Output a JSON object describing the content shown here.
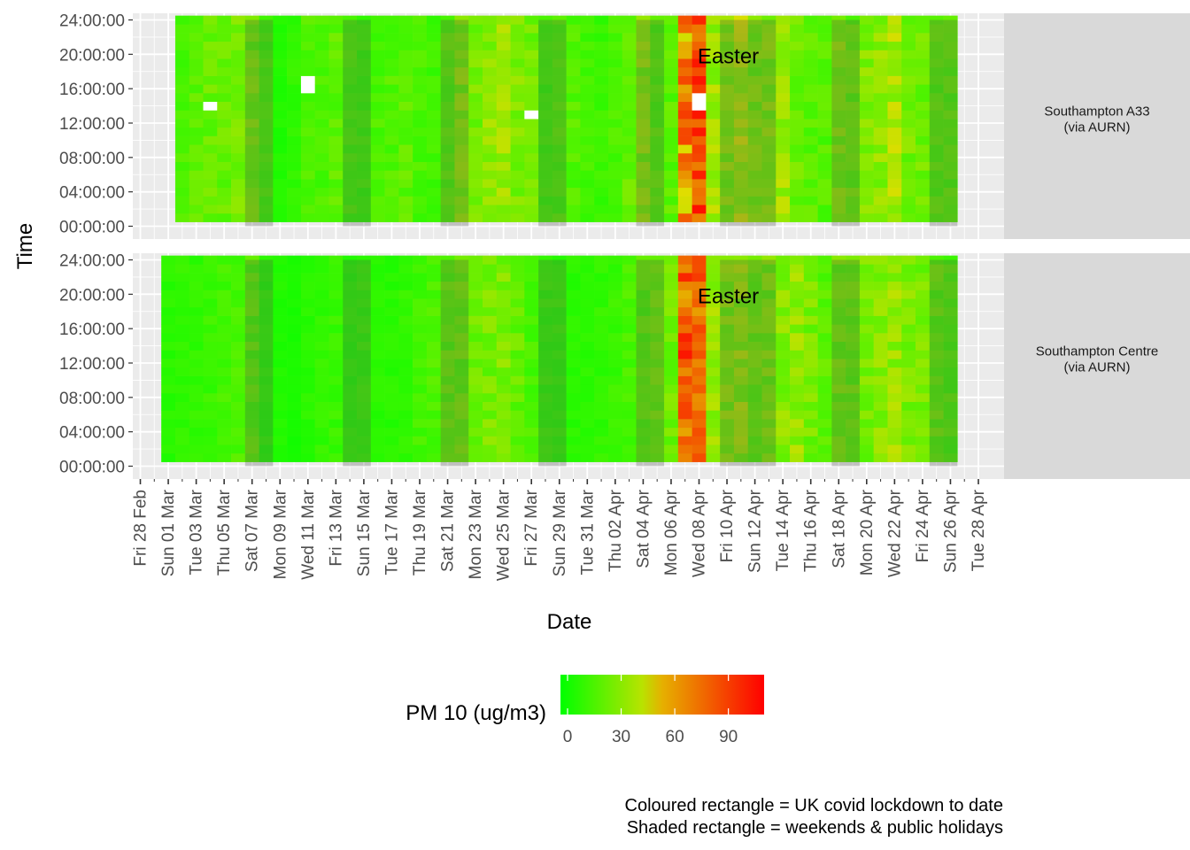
{
  "chart_data": {
    "type": "heatmap",
    "title": "",
    "xlabel": "Date",
    "ylabel": "Time",
    "x_range": [
      "2020-02-28",
      "2020-04-28"
    ],
    "x_ticks": [
      "Fri 28 Feb",
      "Sun 01 Mar",
      "Tue 03 Mar",
      "Thu 05 Mar",
      "Sat 07 Mar",
      "Mon 09 Mar",
      "Wed 11 Mar",
      "Fri 13 Mar",
      "Sun 15 Mar",
      "Tue 17 Mar",
      "Thu 19 Mar",
      "Sat 21 Mar",
      "Mon 23 Mar",
      "Wed 25 Mar",
      "Fri 27 Mar",
      "Sun 29 Mar",
      "Tue 31 Mar",
      "Thu 02 Apr",
      "Sat 04 Apr",
      "Mon 06 Apr",
      "Wed 08 Apr",
      "Fri 10 Apr",
      "Sun 12 Apr",
      "Tue 14 Apr",
      "Thu 16 Apr",
      "Sat 18 Apr",
      "Mon 20 Apr",
      "Wed 22 Apr",
      "Fri 24 Apr",
      "Sun 26 Apr",
      "Tue 28 Apr"
    ],
    "y_ticks": [
      "00:00:00",
      "04:00:00",
      "08:00:00",
      "12:00:00",
      "16:00:00",
      "20:00:00",
      "24:00:00"
    ],
    "y_range_hours": [
      0,
      24
    ],
    "hours_per_cell": 1,
    "grid": true,
    "facets": [
      {
        "name": "Southampton A33\n(via AURN)",
        "date_range": [
          "2020-03-02",
          "2020-04-26"
        ],
        "values_description": "Daily column of 24 hourly PM10 values, mostly 5–40 ug/m3 with peaks near 100 on 08 Apr",
        "daily_mean_pm10": [
          18,
          22,
          25,
          24,
          28,
          26,
          16,
          8,
          12,
          20,
          18,
          22,
          16,
          14,
          18,
          20,
          22,
          18,
          16,
          20,
          30,
          28,
          34,
          36,
          30,
          26,
          14,
          18,
          20,
          16,
          14,
          18,
          24,
          30,
          20,
          22,
          70,
          40,
          38,
          32,
          40,
          28,
          30,
          38,
          26,
          22,
          20,
          30,
          24,
          30,
          34,
          40,
          28,
          26,
          20
        ],
        "peak_pm10": 105,
        "missing": [
          {
            "date": "2020-03-04",
            "hour": 13
          },
          {
            "date": "2020-03-11",
            "hours": [
              15,
              16
            ]
          },
          {
            "date": "2020-03-27",
            "hour": 12
          },
          {
            "date": "2020-04-08",
            "hours": [
              13,
              14
            ]
          }
        ]
      },
      {
        "name": "Southampton Centre\n(via AURN)",
        "date_range": [
          "2020-03-01",
          "2020-04-26"
        ],
        "values_description": "Daily column of 24 hourly PM10 values, mostly 5–35 ug/m3 with peaks near 90 on 08 Apr",
        "daily_mean_pm10": [
          10,
          12,
          12,
          14,
          16,
          18,
          20,
          10,
          8,
          6,
          10,
          12,
          14,
          10,
          12,
          10,
          10,
          12,
          16,
          18,
          22,
          24,
          26,
          28,
          30,
          24,
          18,
          12,
          12,
          10,
          10,
          12,
          14,
          18,
          20,
          24,
          26,
          80,
          40,
          36,
          30,
          34,
          26,
          28,
          32,
          36,
          28,
          22,
          26,
          24,
          28,
          32,
          36,
          30,
          28,
          22,
          18
        ],
        "peak_pm10": 92
      }
    ],
    "annotations": [
      {
        "text": "Easter",
        "date": "2020-04-08",
        "time": "20:00:00",
        "facet": 0
      },
      {
        "text": "Easter",
        "date": "2020-04-08",
        "time": "20:00:00",
        "facet": 1
      }
    ],
    "shaded_rectangles": [
      [
        "2020-03-07",
        "2020-03-08"
      ],
      [
        "2020-03-14",
        "2020-03-15"
      ],
      [
        "2020-03-21",
        "2020-03-22"
      ],
      [
        "2020-03-28",
        "2020-03-29"
      ],
      [
        "2020-04-04",
        "2020-04-05"
      ],
      [
        "2020-04-10",
        "2020-04-13"
      ],
      [
        "2020-04-18",
        "2020-04-19"
      ],
      [
        "2020-04-25",
        "2020-04-26"
      ]
    ],
    "legend": {
      "title": "PM 10 (ug/m3)",
      "ticks": [
        0,
        30,
        60,
        90
      ],
      "range": [
        0,
        110
      ],
      "low_color": "#00FF00",
      "high_color": "#FF0000",
      "placement": "bottom"
    },
    "caption_lines": [
      "Coloured rectangle = UK covid lockdown to date",
      "Shaded rectangle = weekends & public holidays"
    ]
  },
  "colors": {
    "panel_bg": "#EBEBEB",
    "strip_bg": "#D9D9D9",
    "grid": "#FFFFFF",
    "shade": "#505050"
  }
}
